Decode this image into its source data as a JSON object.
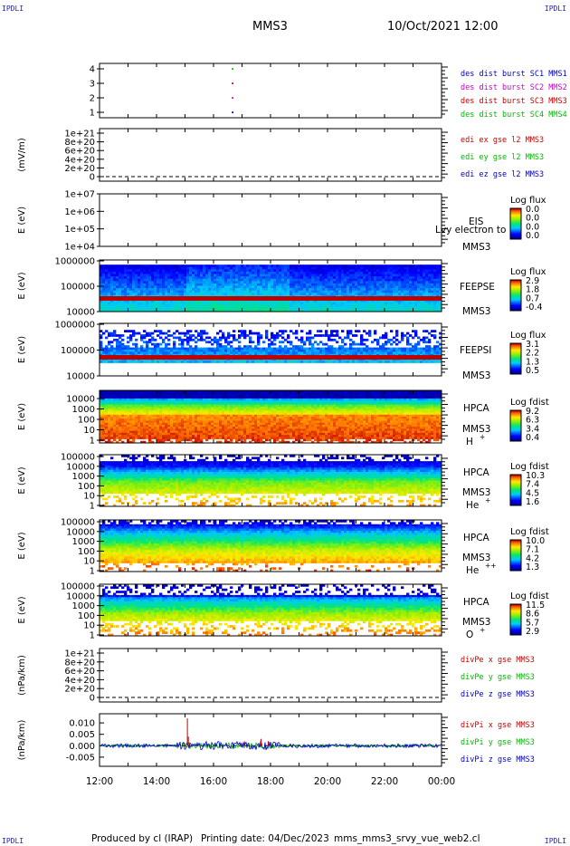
{
  "header": {
    "corner_tl": "IPDLI",
    "corner_tr": "IPDLI",
    "corner_bl": "IPDLI",
    "corner_br": "IPDLI",
    "spacecraft": "MMS3",
    "datetime": "10/Oct/2021 12:00"
  },
  "footer": {
    "produced": "Produced by cl (IRAP)",
    "printing": "Printing date: 04/Dec/2023",
    "file": "mms_mms3_srvy_vue_web2.cl"
  },
  "colors": {
    "blue": "#0000cc",
    "magenta": "#cc00cc",
    "red": "#cc0000",
    "green": "#00bb00"
  },
  "chart_data": [
    {
      "type": "scatter",
      "yticks": [
        "4",
        "3",
        "2",
        "1"
      ],
      "legend": [
        {
          "label": "des dist burst SC1 MMS1",
          "color": "#0000cc"
        },
        {
          "label": "des dist burst SC2 MMS2",
          "color": "#cc00cc"
        },
        {
          "label": "des dist burst SC3 MMS3",
          "color": "#cc0000"
        },
        {
          "label": "des dist burst SC4 MMS4",
          "color": "#00bb00"
        }
      ],
      "points": [
        {
          "t": "16:40",
          "y": 4,
          "color": "#00bb00"
        },
        {
          "t": "16:40",
          "y": 3,
          "color": "#cc0000"
        },
        {
          "t": "16:40",
          "y": 2,
          "color": "#cc00cc"
        },
        {
          "t": "16:40",
          "y": 1,
          "color": "#0000cc"
        }
      ]
    },
    {
      "type": "line",
      "ylabel": "(mV/m)",
      "yticks": [
        "1e+21",
        "8e+20",
        "6e+20",
        "4e+20",
        "2e+20",
        "0"
      ],
      "legend": [
        {
          "label": "edi ex gse l2 MMS3",
          "color": "#cc0000"
        },
        {
          "label": "edi ey gse l2 MMS3",
          "color": "#00bb00"
        },
        {
          "label": "edi ez gse l2 MMS3",
          "color": "#0000cc"
        }
      ]
    },
    {
      "type": "heatmap",
      "ylabel": "E (eV)",
      "yticks": [
        "1e+07",
        "1e+06",
        "1e+05",
        "1e+04"
      ],
      "instrument": "EIS",
      "sc": "MMS3",
      "overlay": "Lvy electron to",
      "cbar_title": "Log flux",
      "cbar_ticks": [
        "0.0",
        "0.0",
        "0.0",
        "0.0"
      ],
      "empty": true
    },
    {
      "type": "heatmap",
      "ylabel": "E (eV)",
      "yticks": [
        "1000000",
        "100000",
        "10000"
      ],
      "instrument": "FEEPSE",
      "sc": "MMS3",
      "cbar_title": "Log flux",
      "cbar_ticks": [
        "2.9",
        "1.8",
        "0.7",
        "-0.4"
      ]
    },
    {
      "type": "heatmap",
      "ylabel": "E (eV)",
      "yticks": [
        "1000000",
        "100000",
        "10000"
      ],
      "instrument": "FEEPSI",
      "sc": "MMS3",
      "cbar_title": "Log flux",
      "cbar_ticks": [
        "3.1",
        "2.2",
        "1.3",
        "0.5"
      ]
    },
    {
      "type": "heatmap",
      "ylabel": "E (eV)",
      "yticks": [
        "10000",
        "1000",
        "100",
        "10",
        "1"
      ],
      "instrument": "HPCA",
      "sc": "MMS3",
      "species": "H",
      "species_sup": "+",
      "cbar_title": "Log fdist",
      "cbar_ticks": [
        "9.2",
        "6.3",
        "3.4",
        "0.4"
      ]
    },
    {
      "type": "heatmap",
      "ylabel": "E (eV)",
      "yticks": [
        "100000",
        "10000",
        "1000",
        "100",
        "10",
        "1"
      ],
      "instrument": "HPCA",
      "sc": "MMS3",
      "species": "He",
      "species_sup": "+",
      "cbar_title": "Log fdist",
      "cbar_ticks": [
        "10.3",
        "7.4",
        "4.5",
        "1.6"
      ]
    },
    {
      "type": "heatmap",
      "ylabel": "E (eV)",
      "yticks": [
        "100000",
        "10000",
        "1000",
        "100",
        "10",
        "1"
      ],
      "instrument": "HPCA",
      "sc": "MMS3",
      "species": "He",
      "species_sup": "++",
      "cbar_title": "Log fdist",
      "cbar_ticks": [
        "10.0",
        "7.1",
        "4.2",
        "1.3"
      ]
    },
    {
      "type": "heatmap",
      "ylabel": "E (eV)",
      "yticks": [
        "100000",
        "10000",
        "1000",
        "100",
        "10",
        "1"
      ],
      "instrument": "HPCA",
      "sc": "MMS3",
      "species": "O",
      "species_sup": "+",
      "cbar_title": "Log fdist",
      "cbar_ticks": [
        "11.5",
        "8.6",
        "5.7",
        "2.9"
      ]
    },
    {
      "type": "line",
      "ylabel": "(nPa/km)",
      "yticks": [
        "1e+21",
        "8e+20",
        "6e+20",
        "4e+20",
        "2e+20",
        "0"
      ],
      "legend": [
        {
          "label": "divPe x gse MMS3",
          "color": "#cc0000"
        },
        {
          "label": "divPe y gse MMS3",
          "color": "#00bb00"
        },
        {
          "label": "divPe z gse MMS3",
          "color": "#0000cc"
        }
      ]
    },
    {
      "type": "line",
      "ylabel": "(nPa/km)",
      "yticks": [
        "0.010",
        "0.005",
        "0.000",
        "-0.005"
      ],
      "ylim": [
        -0.009,
        0.014
      ],
      "legend": [
        {
          "label": "divPi x gse MMS3",
          "color": "#cc0000"
        },
        {
          "label": "divPi y gse MMS3",
          "color": "#00bb00"
        },
        {
          "label": "divPi z gse MMS3",
          "color": "#0000cc"
        }
      ],
      "spikes_red": [
        {
          "t": "15:05",
          "v": 0.012
        },
        {
          "t": "15:07",
          "v": 0.004
        },
        {
          "t": "17:05",
          "v": 0.002
        },
        {
          "t": "17:40",
          "v": 0.003
        },
        {
          "t": "17:55",
          "v": 0.002
        }
      ]
    }
  ],
  "xaxis": {
    "ticks": [
      "12:00",
      "14:00",
      "16:00",
      "18:00",
      "20:00",
      "22:00",
      "00:00"
    ]
  }
}
